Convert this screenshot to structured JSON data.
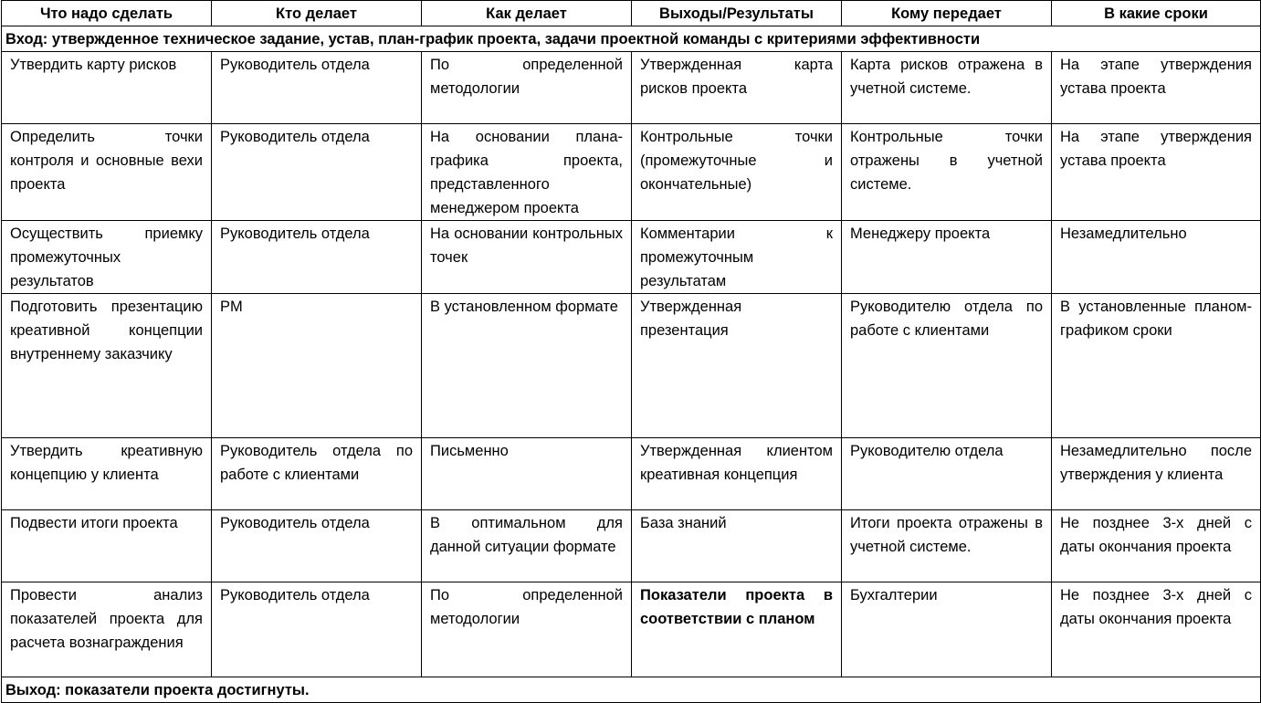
{
  "headers": [
    "Что надо сделать",
    "Кто делает",
    "Как делает",
    "Выходы/Результаты",
    "Кому передает",
    "В какие сроки"
  ],
  "input_row": "Вход: утвержденное техническое задание, устав, план-график проекта, задачи проектной команды с критериями эффективности",
  "rows": [
    [
      "Утвердить карту рисков",
      "Руководитель отдела",
      "По определенной методологии",
      "Утвержденная карта рисков проекта",
      "Карта рисков отражена в учетной системе.",
      "На этапе утверждения устава проекта"
    ],
    [
      "Определить точки контроля и основные вехи проекта",
      "Руководитель отдела",
      "На основании плана-графика проекта, представленного менеджером проекта",
      "Контрольные точки (промежуточные и окончательные)",
      "Контрольные точки отражены в учетной системе.",
      "На этапе утверждения устава проекта"
    ],
    [
      "Осуществить приемку промежуточных результатов",
      "Руководитель отдела",
      "На основании контрольных точек",
      "Комментарии к промежуточным результатам",
      "Менеджеру проекта",
      "Незамедлительно"
    ],
    [
      "Подготовить презентацию креативной концепции внутреннему заказчику",
      "PM",
      "В установленном формате",
      "Утвержденная презентация",
      "Руководителю отдела по работе с клиентами",
      "В установленные планом-графиком сроки"
    ],
    [
      "Утвердить креативную концепцию у клиента",
      "Руководитель отдела по работе с клиентами",
      "Письменно",
      "Утвержденная клиентом креативная концепция",
      "Руководителю отдела",
      "Незамедлительно после утверждения у клиента"
    ],
    [
      "Подвести итоги проекта",
      "Руководитель отдела",
      "В оптимальном для данной ситуации формате",
      "База знаний",
      "Итоги проекта отражены в учетной системе.",
      "Не позднее 3-х дней с даты окончания проекта"
    ],
    [
      "Провести анализ показателей проекта для расчета вознаграждения",
      "Руководитель отдела",
      "По определенной методологии",
      "Показатели проекта в соответствии с планом",
      "Бухгалтерии",
      "Не позднее 3-х дней с даты окончания проекта"
    ]
  ],
  "output_row": "Выход: показатели проекта достигнуты."
}
